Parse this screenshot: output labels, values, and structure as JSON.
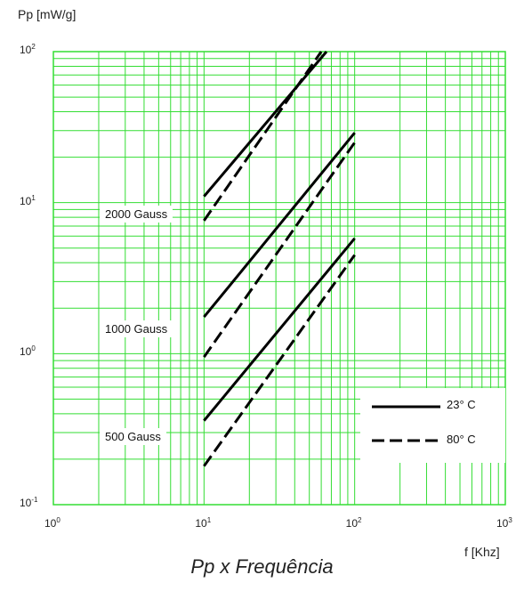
{
  "chart_data": {
    "type": "line",
    "title": "Pp x Frequência",
    "xlabel": "f [Khz]",
    "ylabel": "Pp [mW/g]",
    "x_scale": "log",
    "y_scale": "log",
    "xlim": [
      1,
      1000
    ],
    "ylim": [
      0.1,
      100
    ],
    "grid": true,
    "grid_color": "#33dd33",
    "line_color": "#000000",
    "xticks": [
      {
        "value": 1,
        "base": "10",
        "exp": "0"
      },
      {
        "value": 10,
        "base": "10",
        "exp": "1"
      },
      {
        "value": 100,
        "base": "10",
        "exp": "2"
      },
      {
        "value": 1000,
        "base": "10",
        "exp": "3"
      }
    ],
    "yticks": [
      {
        "value": 0.1,
        "base": "10",
        "exp": "-1"
      },
      {
        "value": 1,
        "base": "10",
        "exp": "0"
      },
      {
        "value": 10,
        "base": "10",
        "exp": "1"
      },
      {
        "value": 100,
        "base": "10",
        "exp": "2"
      }
    ],
    "curve_labels": [
      "2000 Gauss",
      "1000 Gauss",
      "500 Gauss"
    ],
    "legend": {
      "position": "lower-right",
      "entries": [
        {
          "label": "23° C",
          "style": "solid"
        },
        {
          "label": "80° C",
          "style": "dashed"
        }
      ]
    },
    "series": [
      {
        "group": "2000 Gauss",
        "style": "solid",
        "x": [
          10,
          65
        ],
        "y": [
          11.0,
          100
        ]
      },
      {
        "group": "2000 Gauss",
        "style": "dashed",
        "x": [
          10,
          60
        ],
        "y": [
          7.6,
          100
        ]
      },
      {
        "group": "1000 Gauss",
        "style": "solid",
        "x": [
          10,
          100
        ],
        "y": [
          1.75,
          29
        ]
      },
      {
        "group": "1000 Gauss",
        "style": "dashed",
        "x": [
          10,
          100
        ],
        "y": [
          0.95,
          25
        ]
      },
      {
        "group": "500 Gauss",
        "style": "solid",
        "x": [
          10,
          100
        ],
        "y": [
          0.36,
          5.8
        ]
      },
      {
        "group": "500 Gauss",
        "style": "dashed",
        "x": [
          10,
          100
        ],
        "y": [
          0.18,
          4.5
        ]
      }
    ]
  }
}
